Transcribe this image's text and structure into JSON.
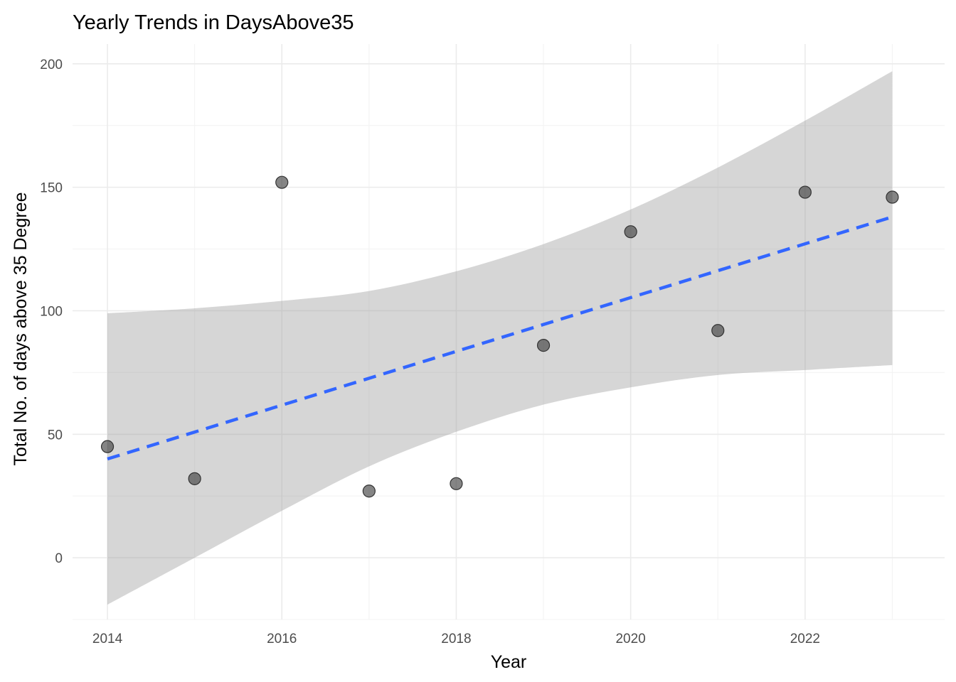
{
  "chart_data": {
    "type": "scatter",
    "title": "Yearly Trends in DaysAbove35",
    "xlabel": "Year",
    "ylabel": "Total No. of days above 35 Degree",
    "x": [
      2014,
      2015,
      2016,
      2017,
      2018,
      2019,
      2020,
      2021,
      2022,
      2023
    ],
    "y": [
      45,
      32,
      152,
      27,
      30,
      86,
      132,
      92,
      148,
      146
    ],
    "xlim": [
      2013.6,
      2023.6
    ],
    "ylim": [
      -25,
      208
    ],
    "x_ticks": [
      2014,
      2016,
      2018,
      2020,
      2022
    ],
    "x_tick_labels": [
      "2014",
      "2016",
      "2018",
      "2020",
      "2022"
    ],
    "y_ticks": [
      0,
      50,
      100,
      150,
      200
    ],
    "y_tick_labels": [
      "0",
      "50",
      "100",
      "150",
      "200"
    ],
    "grid": true,
    "trend": {
      "method": "linear",
      "start": {
        "x": 2014,
        "y": 40
      },
      "end": {
        "x": 2023,
        "y": 138
      },
      "style": "dashed",
      "color": "#3366FF"
    },
    "confidence_band": [
      {
        "x": 2014,
        "lower": -19,
        "upper": 99
      },
      {
        "x": 2015,
        "lower": 0,
        "upper": 101
      },
      {
        "x": 2016,
        "lower": 19,
        "upper": 104
      },
      {
        "x": 2017,
        "lower": 37,
        "upper": 108
      },
      {
        "x": 2018,
        "lower": 51,
        "upper": 116
      },
      {
        "x": 2019,
        "lower": 62,
        "upper": 127
      },
      {
        "x": 2020,
        "lower": 69,
        "upper": 141
      },
      {
        "x": 2021,
        "lower": 74,
        "upper": 158
      },
      {
        "x": 2022,
        "lower": 76,
        "upper": 177
      },
      {
        "x": 2023,
        "lower": 78,
        "upper": 197
      }
    ],
    "colors": {
      "points": "#333333",
      "band": "#999999",
      "trend": "#3366FF",
      "grid": "#EBEBEB"
    }
  }
}
